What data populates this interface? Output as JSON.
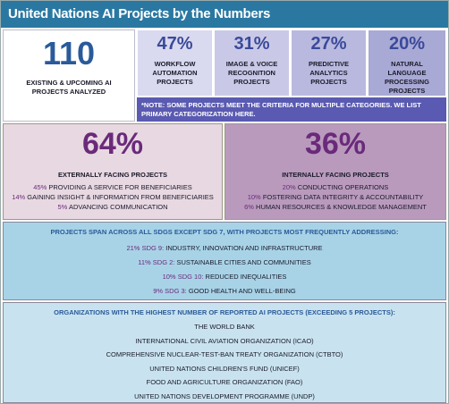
{
  "header": {
    "title": "United Nations AI Projects by the Numbers"
  },
  "summary": {
    "value": "110",
    "label": "EXISTING & UPCOMING AI PROJECTS ANALYZED"
  },
  "categories": [
    {
      "percent": "47%",
      "label": "WORKFLOW AUTOMATION PROJECTS"
    },
    {
      "percent": "31%",
      "label": "IMAGE & VOICE RECOGNITION PROJECTS"
    },
    {
      "percent": "27%",
      "label": "PREDICTIVE ANALYTICS PROJECTS"
    },
    {
      "percent": "20%",
      "label": "NATURAL LANGUAGE PROCESSING PROJECTS"
    }
  ],
  "note": "*NOTE: SOME PROJECTS MEET THE CRITERIA FOR MULTIPLE CATEGORIES. WE LIST PRIMARY CATEGORIZATION HERE.",
  "facing": [
    {
      "percent": "64%",
      "title": "EXTERNALLY FACING PROJECTS",
      "items": [
        {
          "percent": "45%",
          "text": "PROVIDING A SERVICE FOR BENEFICIARIES"
        },
        {
          "percent": "14%",
          "text": "GAINING INSIGHT & INFORMATION FROM BENEFICIARIES"
        },
        {
          "percent": "5%",
          "text": "ADVANCING COMMUNICATION"
        }
      ]
    },
    {
      "percent": "36%",
      "title": "INTERNALLY FACING PROJECTS",
      "items": [
        {
          "percent": "20%",
          "text": "CONDUCTING OPERATIONS"
        },
        {
          "percent": "10%",
          "text": "FOSTERING DATA INTEGRITY & ACCOUNTABILITY"
        },
        {
          "percent": "6%",
          "text": "HUMAN RESOURCES & KNOWLEDGE MANAGEMENT"
        }
      ]
    }
  ],
  "sdgs": {
    "title": "PROJECTS SPAN ACROSS ALL SDGS EXCEPT SDG 7, WITH PROJECTS MOST FREQUENTLY ADDRESSING:",
    "items": [
      {
        "percent": "21%",
        "sdg": "SDG 9:",
        "text": "INDUSTRY, INNOVATION AND INFRASTRUCTURE"
      },
      {
        "percent": "11%",
        "sdg": "SDG 2:",
        "text": "SUSTAINABLE CITIES AND COMMUNITIES"
      },
      {
        "percent": "10%",
        "sdg": "SDG 10:",
        "text": "REDUCED INEQUALITIES"
      },
      {
        "percent": "9%",
        "sdg": "SDG 3:",
        "text": "GOOD HEALTH AND WELL-BEING"
      }
    ]
  },
  "organizations": {
    "title": "ORGANIZATIONS WITH THE HIGHEST NUMBER OF REPORTED AI PROJECTS (EXCEEDING 5 PROJECTS):",
    "items": [
      "THE WORLD BANK",
      "INTERNATIONAL CIVIL AVIATION ORGANIZATION (ICAO)",
      "COMPREHENSIVE NUCLEAR-TEST-BAN TREATY ORGANIZATION (CTBTO)",
      "UNITED NATIONS CHILDREN'S FUND (UNICEF)",
      "FOOD AND AGRICULTURE ORGANIZATION (FAO)",
      "UNITED NATIONS DEVELOPMENT PROGRAMME (UNDP)"
    ]
  }
}
